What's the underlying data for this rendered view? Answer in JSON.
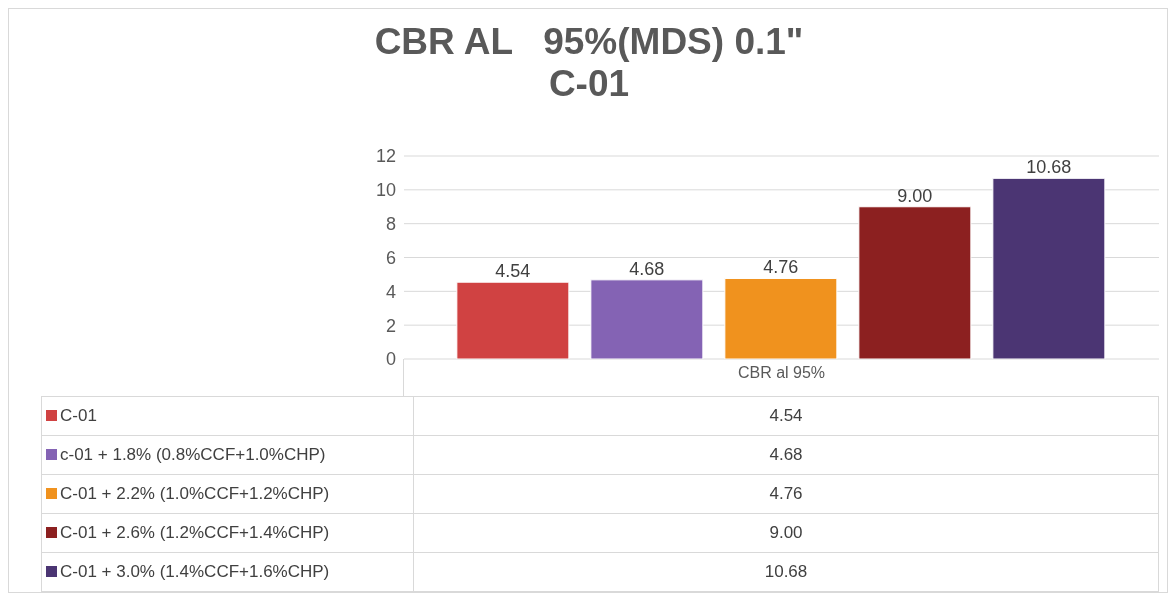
{
  "chart_data": {
    "type": "bar",
    "title": "CBR AL   95%(MDS) 0.1\"\nC-01",
    "categories": [
      "CBR al 95%"
    ],
    "series": [
      {
        "name": "C-01",
        "color": "#d04242",
        "values": [
          4.54
        ],
        "value_labels": [
          "4.54"
        ]
      },
      {
        "name": "c-01 + 1.8% (0.8%CCF+1.0%CHP)",
        "color": "#8463b4",
        "values": [
          4.68
        ],
        "value_labels": [
          "4.68"
        ]
      },
      {
        "name": "C-01 + 2.2% (1.0%CCF+1.2%CHP)",
        "color": "#f0921e",
        "values": [
          4.76
        ],
        "value_labels": [
          "4.76"
        ]
      },
      {
        "name": "C-01 + 2.6% (1.2%CCF+1.4%CHP)",
        "color": "#8c2020",
        "values": [
          9.0
        ],
        "value_labels": [
          "9.00"
        ]
      },
      {
        "name": "C-01 + 3.0% (1.4%CCF+1.6%CHP)",
        "color": "#4b3573",
        "values": [
          10.68
        ],
        "value_labels": [
          "10.68"
        ]
      }
    ],
    "ylim": [
      0,
      12
    ],
    "yticks": [
      0,
      2,
      4,
      6,
      8,
      10,
      12
    ],
    "grid": "y",
    "legend": "bottom"
  }
}
